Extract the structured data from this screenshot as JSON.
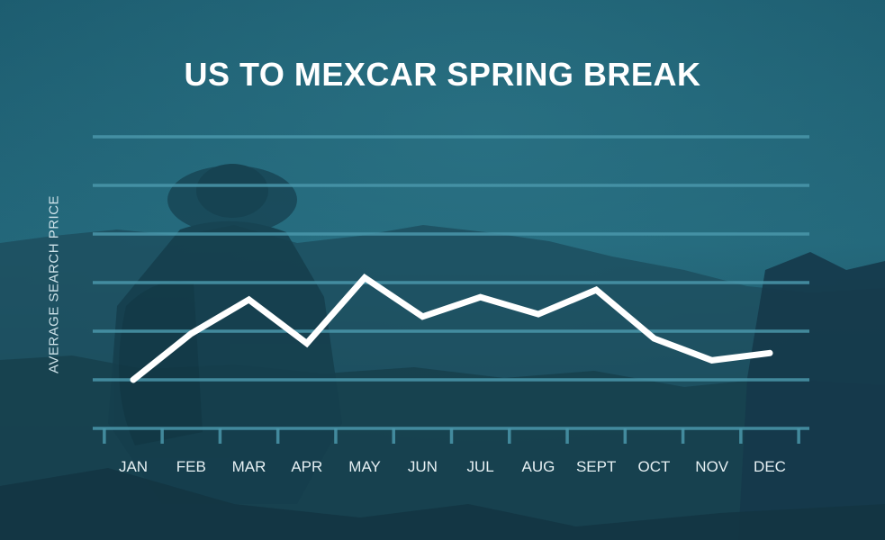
{
  "chart_data": {
    "type": "line",
    "title": "US TO MEXCAR SPRING BREAK",
    "xlabel": "",
    "ylabel": "AVERAGE SEARCH PRICE",
    "categories": [
      "JAN",
      "FEB",
      "MAR",
      "APR",
      "MAY",
      "JUN",
      "JUL",
      "AUG",
      "SEPT",
      "OCT",
      "NOV",
      "DEC"
    ],
    "series": [
      {
        "values": [
          1.0,
          1.95,
          2.65,
          1.75,
          3.1,
          2.3,
          2.7,
          2.35,
          2.85,
          1.85,
          1.4,
          1.55
        ]
      }
    ],
    "ylim": [
      0,
      6
    ],
    "grid": true,
    "y_tick_labels_shown": false,
    "line_color": "#ffffff",
    "grid_color": "#4a97ab",
    "background_color": "#1f5a6b"
  }
}
